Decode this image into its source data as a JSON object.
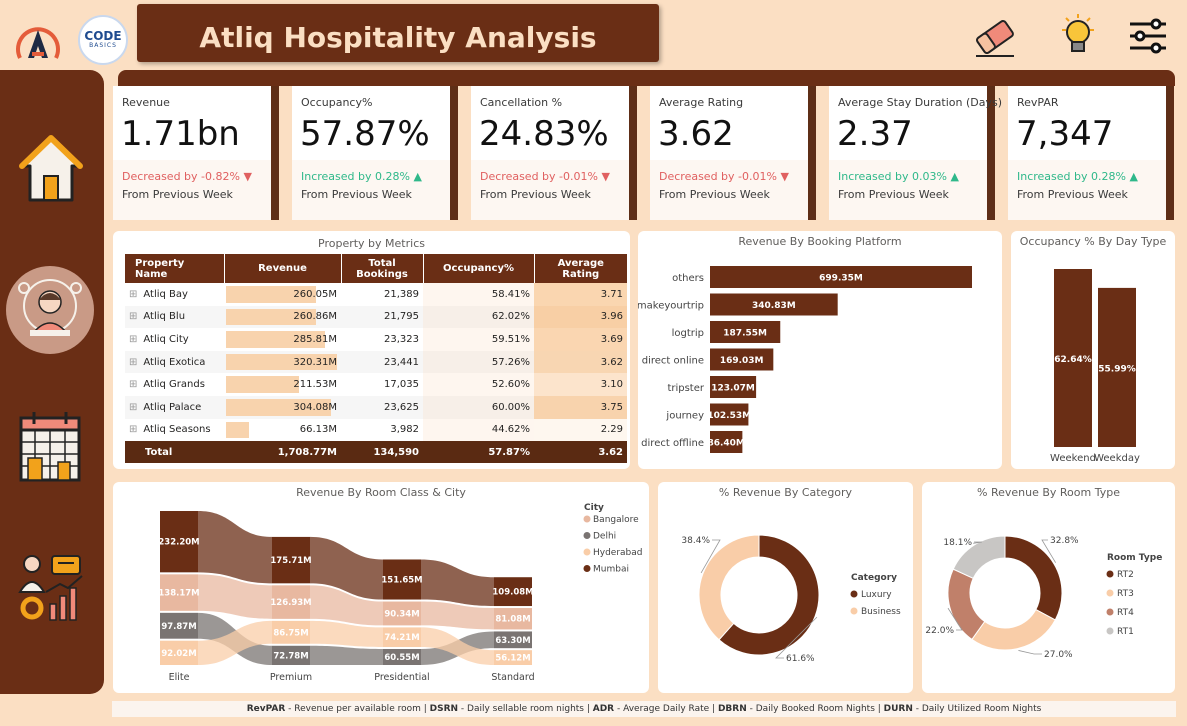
{
  "header": {
    "title": "Atliq Hospitality Analysis",
    "logo2_text": "CODE",
    "logo2_sub": "BASICS"
  },
  "toolbar": {
    "icons": [
      "eraser-icon",
      "lightbulb-icon",
      "sliders-icon"
    ]
  },
  "sidebar": {
    "items": [
      "home-icon",
      "person-globe-icon",
      "calendar-city-icon",
      "analyst-icon"
    ]
  },
  "kpis": [
    {
      "label": "Revenue",
      "value": "1.71bn",
      "change": "Decreased by -0.82%",
      "arrow": "▼",
      "dir": "down",
      "sub": "From Previous Week"
    },
    {
      "label": "Occupancy%",
      "value": "57.87%",
      "change": "Increased by 0.28%",
      "arrow": "▲",
      "dir": "up",
      "sub": "From Previous Week"
    },
    {
      "label": "Cancellation %",
      "value": "24.83%",
      "change": "Decreased by -0.01%",
      "arrow": "▼",
      "dir": "down",
      "sub": "From Previous Week"
    },
    {
      "label": "Average Rating",
      "value": "3.62",
      "change": "Decreased by -0.01%",
      "arrow": "▼",
      "dir": "down",
      "sub": "From Previous Week"
    },
    {
      "label": "Average Stay Duration (Days)",
      "value": "2.37",
      "change": "Increased by 0.03%",
      "arrow": "▲",
      "dir": "up",
      "sub": "From Previous Week"
    },
    {
      "label": "RevPAR",
      "value": "7,347",
      "change": "Increased by 0.28%",
      "arrow": "▲",
      "dir": "up",
      "sub": "From Previous Week"
    }
  ],
  "property_table": {
    "title": "Property by Metrics",
    "columns": [
      "Property Name",
      "Revenue",
      "Total Bookings",
      "Occupancy%",
      "Average Rating"
    ],
    "expand_glyph": "⊞",
    "rows": [
      {
        "name": "Atliq Bay",
        "revenue": "260.05M",
        "revenue_value": 260.05,
        "bookings": "21,389",
        "occupancy": "58.41%",
        "rating": "3.71"
      },
      {
        "name": "Atliq Blu",
        "revenue": "260.86M",
        "revenue_value": 260.86,
        "bookings": "21,795",
        "occupancy": "62.02%",
        "rating": "3.96"
      },
      {
        "name": "Atliq City",
        "revenue": "285.81M",
        "revenue_value": 285.81,
        "bookings": "23,323",
        "occupancy": "59.51%",
        "rating": "3.69"
      },
      {
        "name": "Atliq Exotica",
        "revenue": "320.31M",
        "revenue_value": 320.31,
        "bookings": "23,441",
        "occupancy": "57.26%",
        "rating": "3.62"
      },
      {
        "name": "Atliq Grands",
        "revenue": "211.53M",
        "revenue_value": 211.53,
        "bookings": "17,035",
        "occupancy": "52.60%",
        "rating": "3.10"
      },
      {
        "name": "Atliq Palace",
        "revenue": "304.08M",
        "revenue_value": 304.08,
        "bookings": "23,625",
        "occupancy": "60.00%",
        "rating": "3.75"
      },
      {
        "name": "Atliq Seasons",
        "revenue": "66.13M",
        "revenue_value": 66.13,
        "bookings": "3,982",
        "occupancy": "44.62%",
        "rating": "2.29"
      }
    ],
    "total": {
      "name": "Total",
      "revenue": "1,708.77M",
      "bookings": "134,590",
      "occupancy": "57.87%",
      "rating": "3.62"
    }
  },
  "chart_data": [
    {
      "type": "bar",
      "orientation": "horizontal",
      "title": "Revenue By Booking Platform",
      "categories": [
        "others",
        "makeyourtrip",
        "logtrip",
        "direct online",
        "tripster",
        "journey",
        "direct offline"
      ],
      "values": [
        699.35,
        340.83,
        187.55,
        169.03,
        123.07,
        102.53,
        86.4
      ],
      "labels": [
        "699.35M",
        "340.83M",
        "187.55M",
        "169.03M",
        "123.07M",
        "102.53M",
        "86.40M"
      ],
      "color": "#6a2e15"
    },
    {
      "type": "bar",
      "title": "Occupancy % By Day Type",
      "categories": [
        "Weekend",
        "Weekday"
      ],
      "values": [
        62.64,
        55.99
      ],
      "labels": [
        "62.64%",
        "55.99%"
      ],
      "color": "#6a2e15"
    },
    {
      "type": "bar",
      "subtype": "ribbon-stacked",
      "title": "Revenue By Room Class & City",
      "categories": [
        "Elite",
        "Premium",
        "Presidential",
        "Standard"
      ],
      "legend_title": "City",
      "series": [
        {
          "name": "Bangalore",
          "color": "#e8b8a0",
          "values": [
            138.17,
            126.93,
            90.34,
            81.08
          ],
          "labels": [
            "138.17M",
            "126.93M",
            "90.34M",
            "81.08M"
          ]
        },
        {
          "name": "Delhi",
          "color": "#7a7472",
          "values": [
            97.87,
            72.78,
            60.55,
            63.3
          ],
          "labels": [
            "97.87M",
            "72.78M",
            "60.55M",
            "63.30M"
          ]
        },
        {
          "name": "Hyderabad",
          "color": "#f9cda8",
          "values": [
            92.02,
            86.75,
            74.21,
            56.12
          ],
          "labels": [
            "92.02M",
            "86.75M",
            "74.21M",
            "56.12M"
          ]
        },
        {
          "name": "Mumbai",
          "color": "#6a2e15",
          "values": [
            232.2,
            175.71,
            151.65,
            109.08
          ],
          "labels": [
            "232.20M",
            "175.71M",
            "151.65M",
            "109.08M"
          ]
        }
      ]
    },
    {
      "type": "pie",
      "subtype": "donut",
      "title": "% Revenue By Category",
      "legend_title": "Category",
      "slices": [
        {
          "name": "Luxury",
          "value": 61.6,
          "label": "61.6%",
          "color": "#6a2e15"
        },
        {
          "name": "Business",
          "value": 38.4,
          "label": "38.4%",
          "color": "#f9cda8"
        }
      ]
    },
    {
      "type": "pie",
      "subtype": "donut",
      "title": "% Revenue By Room Type",
      "legend_title": "Room Type",
      "slices": [
        {
          "name": "RT2",
          "value": 32.8,
          "label": "32.8%",
          "color": "#6a2e15"
        },
        {
          "name": "RT3",
          "value": 27.0,
          "label": "27.0%",
          "color": "#f9cda8"
        },
        {
          "name": "RT4",
          "value": 22.0,
          "label": "22.0%",
          "color": "#c0806a"
        },
        {
          "name": "RT1",
          "value": 18.1,
          "label": "18.1%",
          "color": "#c8c6c4"
        }
      ]
    }
  ],
  "footer": {
    "parts": [
      {
        "abbr": "RevPAR",
        "desc": " - Revenue per available room | "
      },
      {
        "abbr": "DSRN",
        "desc": " - Daily sellable room nights | "
      },
      {
        "abbr": "ADR",
        "desc": " - Average Daily Rate | "
      },
      {
        "abbr": "DBRN",
        "desc": " - Daily Booked Room Nights | "
      },
      {
        "abbr": "DURN",
        "desc": " - Daily Utilized Room Nights"
      }
    ]
  }
}
